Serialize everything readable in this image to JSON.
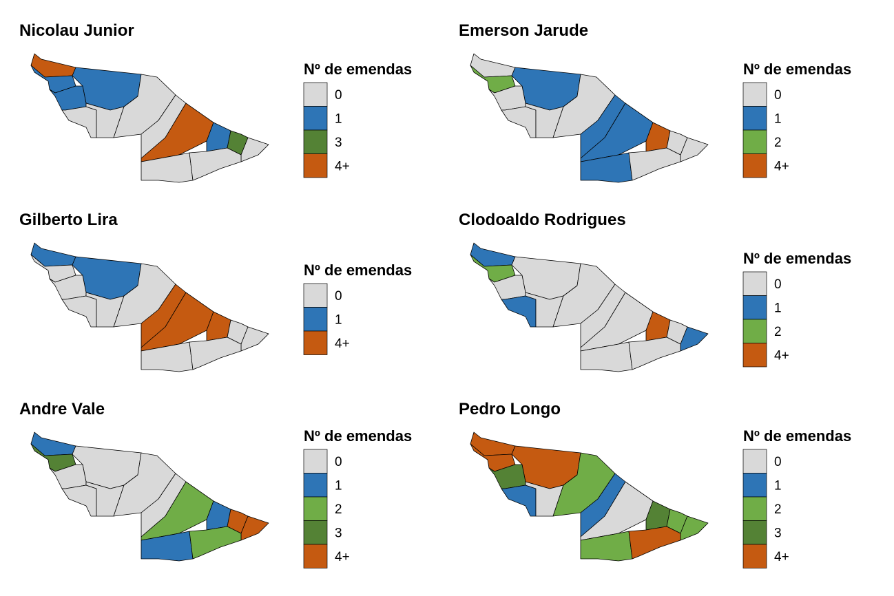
{
  "categories": {
    "0": {
      "label": "0",
      "color": "#D9D9D9"
    },
    "1": {
      "label": "1",
      "color": "#2E75B6"
    },
    "2": {
      "label": "2",
      "color": "#70AD47"
    },
    "3": {
      "label": "3",
      "color": "#548235"
    },
    "4": {
      "label": "4+",
      "color": "#C55A11"
    }
  },
  "panels": [
    {
      "title": "Nicolau Junior",
      "legend_title": "Nº de emendas",
      "legend": [
        "0",
        "1",
        "3",
        "4"
      ],
      "regions": {
        "A": 4,
        "B": 1,
        "C": 1,
        "D": 1,
        "E": 0,
        "F": 0,
        "G": 0,
        "H": 0,
        "I": 4,
        "J": 1,
        "K": 3,
        "L": 0,
        "M1": 0,
        "M2": 0
      }
    },
    {
      "title": "Emerson Jarude",
      "legend_title": "Nº de emendas",
      "legend": [
        "0",
        "1",
        "2",
        "4"
      ],
      "regions": {
        "A": 0,
        "B": 2,
        "C": 1,
        "D": 0,
        "E": 0,
        "F": 0,
        "G": 0,
        "H": 1,
        "I": 1,
        "J": 4,
        "K": 0,
        "L": 0,
        "M1": 1,
        "M2": 0
      }
    },
    {
      "title": "Gilberto Lira",
      "legend_title": "Nº de emendas",
      "legend": [
        "0",
        "1",
        "4"
      ],
      "regions": {
        "A": 1,
        "B": 0,
        "C": 1,
        "D": 0,
        "E": 0,
        "F": 0,
        "G": 0,
        "H": 4,
        "I": 4,
        "J": 4,
        "K": 0,
        "L": 0,
        "M1": 0,
        "M2": 0
      }
    },
    {
      "title": "Clodoaldo Rodrigues",
      "legend_title": "Nº de emendas",
      "legend": [
        "0",
        "1",
        "2",
        "4"
      ],
      "regions": {
        "A": 1,
        "B": 2,
        "C": 0,
        "D": 0,
        "E": 1,
        "F": 0,
        "G": 0,
        "H": 0,
        "I": 0,
        "J": 4,
        "K": 0,
        "L": 1,
        "M1": 0,
        "M2": 0
      }
    },
    {
      "title": "Andre Vale",
      "legend_title": "Nº de emendas",
      "legend": [
        "0",
        "1",
        "2",
        "3",
        "4"
      ],
      "regions": {
        "A": 1,
        "B": 3,
        "C": 0,
        "D": 0,
        "E": 0,
        "F": 0,
        "G": 0,
        "H": 0,
        "I": 2,
        "J": 1,
        "K": 4,
        "L": 4,
        "M1": 1,
        "M2": 2
      }
    },
    {
      "title": "Pedro Longo",
      "legend_title": "Nº de emendas",
      "legend": [
        "0",
        "1",
        "2",
        "3",
        "4"
      ],
      "regions": {
        "A": 4,
        "B": 4,
        "C": 4,
        "D": 3,
        "E": 1,
        "F": 0,
        "G": 2,
        "H": 1,
        "I": 0,
        "J": 3,
        "K": 2,
        "L": 2,
        "M1": 2,
        "M2": 4
      }
    }
  ]
}
